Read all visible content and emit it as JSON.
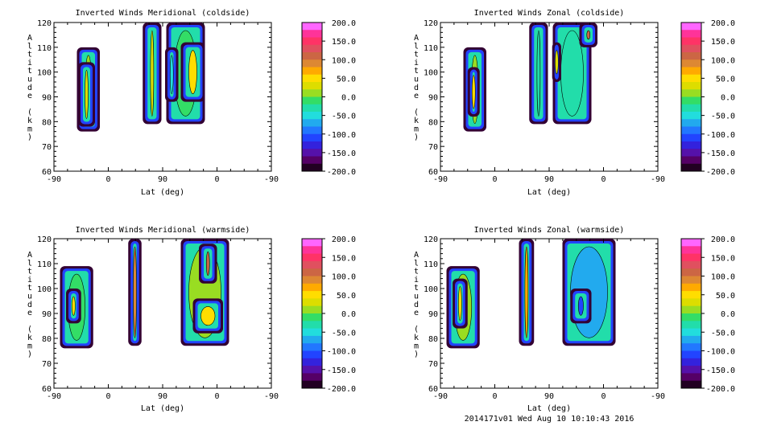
{
  "footer": "2014171v01 Wed Aug 10 10:10:43 2016",
  "colorbar": {
    "labels": [
      "200.0",
      "150.0",
      "100.0",
      "50.0",
      "0.0",
      "-50.0",
      "-100.0",
      "-150.0",
      "-200.0"
    ],
    "colors_top_to_bottom": [
      "#ff66ff",
      "#ff3399",
      "#ff3366",
      "#e0505f",
      "#cc6644",
      "#dd8833",
      "#ffaa00",
      "#ffdd00",
      "#dddd00",
      "#99dd22",
      "#33dd66",
      "#22ddaa",
      "#22dddd",
      "#22aaee",
      "#2277ff",
      "#2244ff",
      "#3322dd",
      "#5511aa",
      "#550066",
      "#220022"
    ]
  },
  "chart_data": [
    {
      "type": "heatmap",
      "title": "Inverted Winds Meridional (coldside)",
      "xlabel": "Lat (deg)",
      "ylabel": "Altitude (km)",
      "xticks": [
        "-90",
        "0",
        "90",
        "0",
        "-90"
      ],
      "yticks": [
        "60",
        "70",
        "80",
        "90",
        "100",
        "110",
        "120"
      ],
      "ylim": [
        60,
        120
      ],
      "zlim": [
        -200,
        200
      ],
      "regions": [
        {
          "x": [
            -52,
            -14
          ],
          "y": [
            76,
            110
          ],
          "core_value": 20
        },
        {
          "x": [
            -50,
            -22
          ],
          "y": [
            78,
            104
          ],
          "core_value": 40
        },
        {
          "x": [
            57,
            88
          ],
          "y": [
            79,
            120
          ],
          "core_value": 40
        },
        {
          "x": [
            96,
            160
          ],
          "y": [
            79,
            120
          ],
          "core_value": 0
        },
        {
          "x": [
            94,
            116
          ],
          "y": [
            88,
            110
          ],
          "core_value": -50
        },
        {
          "x": [
            120,
            160
          ],
          "y": [
            88,
            112
          ],
          "core_value": 60
        }
      ]
    },
    {
      "type": "heatmap",
      "title": "Inverted Winds Zonal (coldside)",
      "xlabel": "Lat (deg)",
      "ylabel": "Altitude (km)",
      "xticks": [
        "-90",
        "0",
        "90",
        "0",
        "-90"
      ],
      "yticks": [
        "60",
        "70",
        "80",
        "90",
        "100",
        "110",
        "120"
      ],
      "ylim": [
        60,
        120
      ],
      "zlim": [
        -200,
        200
      ],
      "regions": [
        {
          "x": [
            -52,
            -14
          ],
          "y": [
            76,
            110
          ],
          "core_value": 20
        },
        {
          "x": [
            -45,
            -25
          ],
          "y": [
            82,
            102
          ],
          "core_value": 60
        },
        {
          "x": [
            57,
            88
          ],
          "y": [
            79,
            120
          ],
          "core_value": -20
        },
        {
          "x": [
            96,
            160
          ],
          "y": [
            79,
            120
          ],
          "core_value": -20
        },
        {
          "x": [
            140,
            170
          ],
          "y": [
            110,
            120
          ],
          "core_value": 120
        },
        {
          "x": [
            95,
            110
          ],
          "y": [
            96,
            112
          ],
          "core_value": 30
        }
      ]
    },
    {
      "type": "heatmap",
      "title": "Inverted Winds Meridional (warmside)",
      "xlabel": "Lat (deg)",
      "ylabel": "Altitude (km)",
      "xticks": [
        "-90",
        "0",
        "90",
        "0",
        "-90"
      ],
      "yticks": [
        "60",
        "70",
        "80",
        "90",
        "100",
        "110",
        "120"
      ],
      "ylim": [
        60,
        120
      ],
      "zlim": [
        -200,
        200
      ],
      "regions": [
        {
          "x": [
            -80,
            -25
          ],
          "y": [
            76,
            109
          ],
          "core_value": 0
        },
        {
          "x": [
            -70,
            -45
          ],
          "y": [
            86,
            100
          ],
          "core_value": 50
        },
        {
          "x": [
            33,
            55
          ],
          "y": [
            77,
            120
          ],
          "core_value": 100
        },
        {
          "x": [
            120,
            200
          ],
          "y": [
            77,
            120
          ],
          "core_value": 20
        },
        {
          "x": [
            150,
            180
          ],
          "y": [
            102,
            118
          ],
          "core_value": 110
        },
        {
          "x": [
            140,
            190
          ],
          "y": [
            82,
            96
          ],
          "core_value": 50
        }
      ]
    },
    {
      "type": "heatmap",
      "title": "Inverted Winds Zonal (warmside)",
      "xlabel": "Lat (deg)",
      "ylabel": "Altitude (km)",
      "xticks": [
        "-90",
        "0",
        "90",
        "0",
        "-90"
      ],
      "yticks": [
        "60",
        "70",
        "80",
        "90",
        "100",
        "110",
        "120"
      ],
      "ylim": [
        60,
        120
      ],
      "zlim": [
        -200,
        200
      ],
      "regions": [
        {
          "x": [
            -80,
            -25
          ],
          "y": [
            76,
            109
          ],
          "core_value": 10
        },
        {
          "x": [
            -70,
            -45
          ],
          "y": [
            84,
            104
          ],
          "core_value": 60
        },
        {
          "x": [
            40,
            65
          ],
          "y": [
            77,
            120
          ],
          "core_value": 80
        },
        {
          "x": [
            112,
            200
          ],
          "y": [
            77,
            120
          ],
          "core_value": -60
        },
        {
          "x": [
            125,
            160
          ],
          "y": [
            86,
            100
          ],
          "core_value": -110
        }
      ]
    }
  ]
}
